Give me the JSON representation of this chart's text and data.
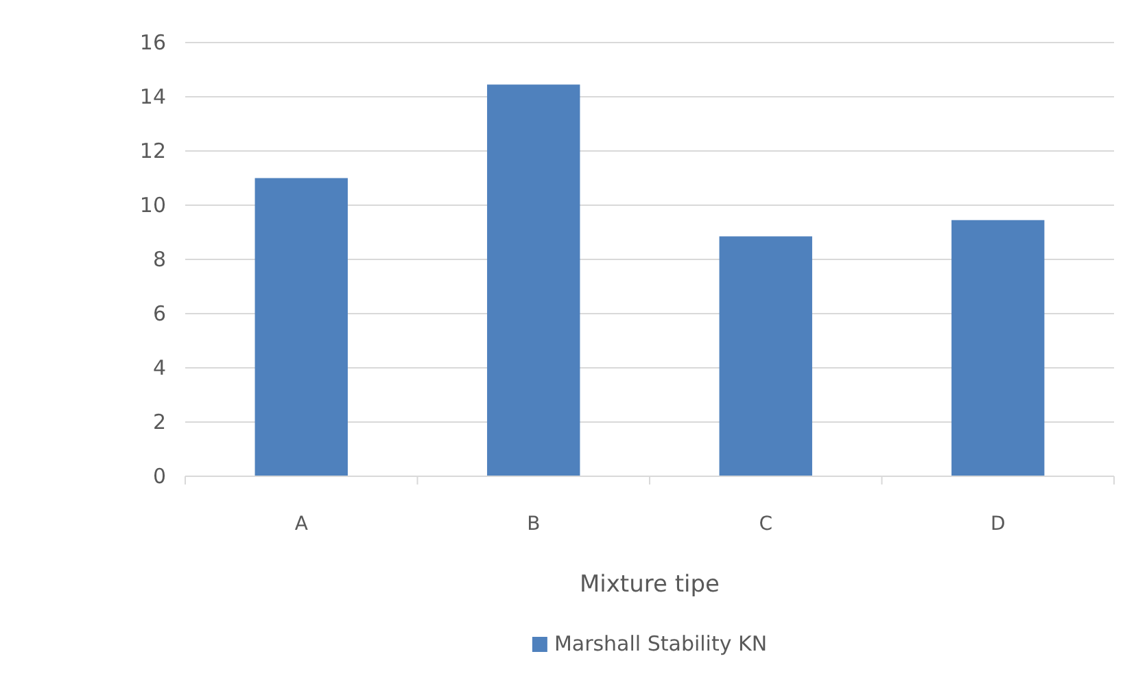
{
  "chart_data": {
    "type": "bar",
    "xlabel": "Mixture tipe",
    "categories": [
      "A",
      "B",
      "C",
      "D"
    ],
    "series": [
      {
        "name": "Marshall Stability KN",
        "color": "#4f81bd",
        "values": [
          11.0,
          14.45,
          8.85,
          9.45
        ]
      }
    ],
    "ylim": [
      0,
      16
    ],
    "yticks": [
      0,
      2,
      4,
      6,
      8,
      10,
      12,
      14,
      16
    ],
    "grid": "y",
    "legend": "bottom"
  }
}
